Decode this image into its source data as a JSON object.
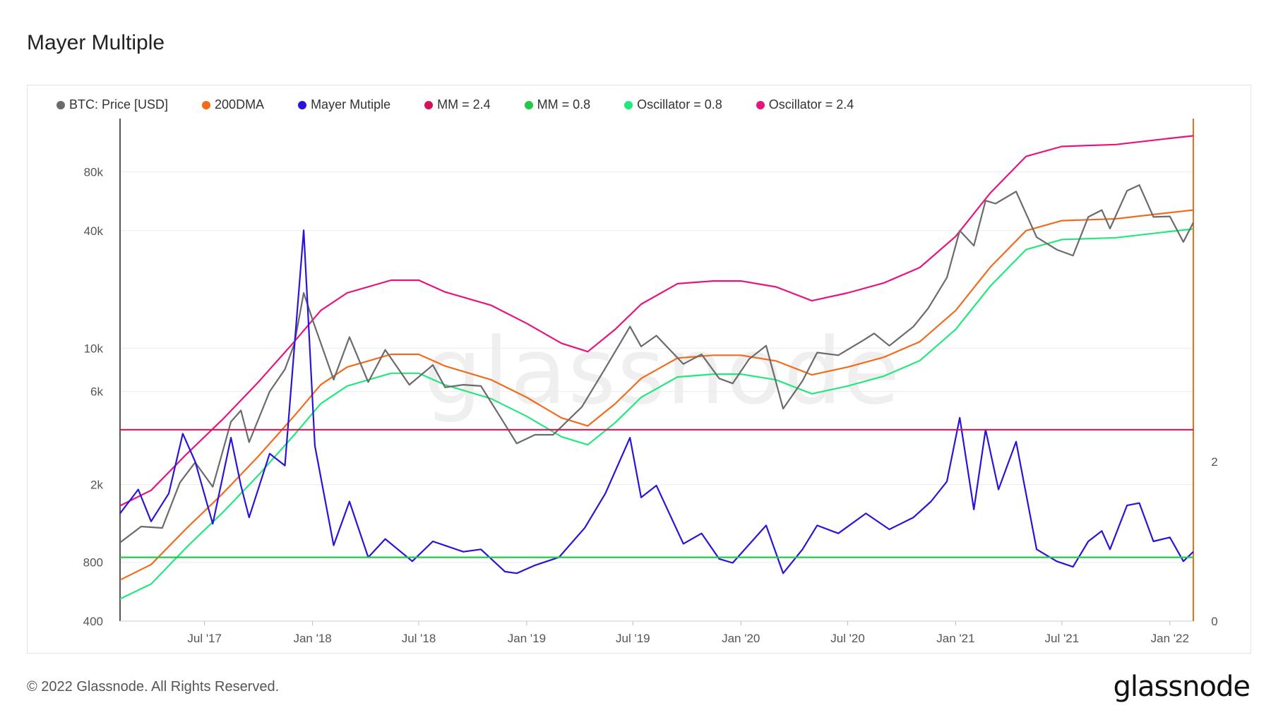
{
  "title": "Mayer Multiple",
  "footer": {
    "copyright": "© 2022 Glassnode. All Rights Reserved.",
    "brand": "glassnode"
  },
  "watermark": "glassnode",
  "chart_data": {
    "type": "line",
    "title": "Mayer Multiple",
    "x_axis": {
      "ticks": [
        "Jul '17",
        "Jan '18",
        "Jul '18",
        "Jan '19",
        "Jul '19",
        "Jan '20",
        "Jul '20",
        "Jan '21",
        "Jul '21",
        "Jan '22"
      ],
      "range": [
        "2017-02-07",
        "2022-02-10"
      ]
    },
    "y_axis_left": {
      "scale": "log",
      "ticks": [
        400,
        800,
        2000,
        6000,
        10000,
        40000,
        80000
      ],
      "tick_labels": [
        "400",
        "800",
        "2k",
        "6k",
        "10k",
        "40k",
        "80k"
      ],
      "range": [
        400,
        150000
      ]
    },
    "y_axis_right": {
      "scale": "linear",
      "ticks": [
        0,
        2
      ],
      "tick_labels": [
        "0",
        "2"
      ],
      "range": [
        0,
        6.3
      ]
    },
    "legend_placement": "top-left",
    "series": [
      {
        "name": "BTC: Price [USD]",
        "color": "#6b6b6b",
        "axis": "left",
        "points": [
          [
            "2017-02-07",
            1010
          ],
          [
            "2017-03-15",
            1220
          ],
          [
            "2017-04-20",
            1200
          ],
          [
            "2017-05-20",
            2050
          ],
          [
            "2017-06-15",
            2600
          ],
          [
            "2017-07-15",
            1950
          ],
          [
            "2017-08-15",
            4200
          ],
          [
            "2017-09-01",
            4800
          ],
          [
            "2017-09-15",
            3300
          ],
          [
            "2017-10-20",
            6000
          ],
          [
            "2017-11-15",
            7800
          ],
          [
            "2017-12-01",
            10500
          ],
          [
            "2017-12-17",
            19200
          ],
          [
            "2018-01-01",
            14000
          ],
          [
            "2018-02-06",
            6900
          ],
          [
            "2018-03-05",
            11400
          ],
          [
            "2018-04-06",
            6700
          ],
          [
            "2018-05-05",
            9800
          ],
          [
            "2018-06-15",
            6500
          ],
          [
            "2018-07-25",
            8200
          ],
          [
            "2018-08-15",
            6300
          ],
          [
            "2018-09-15",
            6500
          ],
          [
            "2018-10-15",
            6400
          ],
          [
            "2018-11-20",
            4300
          ],
          [
            "2018-12-15",
            3250
          ],
          [
            "2019-01-15",
            3600
          ],
          [
            "2019-02-15",
            3600
          ],
          [
            "2019-04-05",
            5000
          ],
          [
            "2019-05-15",
            7900
          ],
          [
            "2019-06-26",
            12900
          ],
          [
            "2019-07-15",
            10200
          ],
          [
            "2019-08-10",
            11600
          ],
          [
            "2019-09-25",
            8300
          ],
          [
            "2019-10-26",
            9300
          ],
          [
            "2019-11-25",
            7000
          ],
          [
            "2019-12-18",
            6600
          ],
          [
            "2020-01-15",
            8800
          ],
          [
            "2020-02-13",
            10300
          ],
          [
            "2020-03-13",
            4900
          ],
          [
            "2020-04-15",
            6800
          ],
          [
            "2020-05-10",
            9500
          ],
          [
            "2020-06-15",
            9200
          ],
          [
            "2020-07-28",
            11000
          ],
          [
            "2020-08-15",
            11900
          ],
          [
            "2020-09-10",
            10300
          ],
          [
            "2020-10-21",
            12900
          ],
          [
            "2020-11-15",
            16000
          ],
          [
            "2020-12-17",
            23000
          ],
          [
            "2021-01-08",
            40000
          ],
          [
            "2021-02-01",
            33500
          ],
          [
            "2021-02-21",
            57000
          ],
          [
            "2021-03-10",
            55000
          ],
          [
            "2021-04-14",
            63500
          ],
          [
            "2021-05-19",
            37000
          ],
          [
            "2021-06-22",
            32000
          ],
          [
            "2021-07-20",
            29800
          ],
          [
            "2021-08-15",
            47000
          ],
          [
            "2021-09-07",
            51000
          ],
          [
            "2021-09-21",
            41000
          ],
          [
            "2021-10-20",
            64000
          ],
          [
            "2021-11-10",
            68500
          ],
          [
            "2021-12-04",
            47000
          ],
          [
            "2022-01-01",
            47300
          ],
          [
            "2022-01-24",
            35000
          ],
          [
            "2022-02-10",
            44000
          ]
        ]
      },
      {
        "name": "200DMA",
        "color": "#f26b1d",
        "axis": "left",
        "points": [
          [
            "2017-02-07",
            650
          ],
          [
            "2017-04-01",
            780
          ],
          [
            "2017-06-01",
            1200
          ],
          [
            "2017-08-01",
            1800
          ],
          [
            "2017-10-01",
            2800
          ],
          [
            "2017-12-01",
            4500
          ],
          [
            "2018-01-15",
            6500
          ],
          [
            "2018-03-01",
            8000
          ],
          [
            "2018-05-15",
            9300
          ],
          [
            "2018-07-01",
            9300
          ],
          [
            "2018-08-15",
            8100
          ],
          [
            "2018-11-01",
            6900
          ],
          [
            "2019-01-01",
            5600
          ],
          [
            "2019-03-01",
            4400
          ],
          [
            "2019-04-15",
            4000
          ],
          [
            "2019-06-01",
            5200
          ],
          [
            "2019-07-15",
            7000
          ],
          [
            "2019-09-15",
            8900
          ],
          [
            "2019-11-15",
            9200
          ],
          [
            "2020-01-01",
            9200
          ],
          [
            "2020-03-01",
            8600
          ],
          [
            "2020-05-01",
            7300
          ],
          [
            "2020-07-01",
            8000
          ],
          [
            "2020-09-01",
            9000
          ],
          [
            "2020-11-01",
            10800
          ],
          [
            "2021-01-01",
            15600
          ],
          [
            "2021-03-01",
            26000
          ],
          [
            "2021-05-01",
            40000
          ],
          [
            "2021-07-01",
            45000
          ],
          [
            "2021-10-01",
            46000
          ],
          [
            "2022-01-01",
            49500
          ],
          [
            "2022-02-10",
            51000
          ]
        ]
      },
      {
        "name": "Mayer Mutiple",
        "color": "#2a14d8",
        "axis": "right",
        "points": [
          [
            "2017-02-07",
            1.35
          ],
          [
            "2017-03-10",
            1.65
          ],
          [
            "2017-04-01",
            1.25
          ],
          [
            "2017-05-01",
            1.6
          ],
          [
            "2017-05-25",
            2.35
          ],
          [
            "2017-06-15",
            2.0
          ],
          [
            "2017-07-15",
            1.22
          ],
          [
            "2017-08-15",
            2.3
          ],
          [
            "2017-09-01",
            1.7
          ],
          [
            "2017-09-15",
            1.3
          ],
          [
            "2017-10-20",
            2.1
          ],
          [
            "2017-11-15",
            1.95
          ],
          [
            "2017-12-17",
            4.9
          ],
          [
            "2018-01-05",
            2.2
          ],
          [
            "2018-02-06",
            0.95
          ],
          [
            "2018-03-05",
            1.5
          ],
          [
            "2018-04-06",
            0.8
          ],
          [
            "2018-05-05",
            1.03
          ],
          [
            "2018-06-20",
            0.75
          ],
          [
            "2018-07-25",
            1.0
          ],
          [
            "2018-09-15",
            0.87
          ],
          [
            "2018-10-15",
            0.9
          ],
          [
            "2018-11-25",
            0.62
          ],
          [
            "2018-12-15",
            0.6
          ],
          [
            "2019-01-15",
            0.7
          ],
          [
            "2019-02-25",
            0.8
          ],
          [
            "2019-04-10",
            1.17
          ],
          [
            "2019-05-15",
            1.6
          ],
          [
            "2019-06-26",
            2.3
          ],
          [
            "2019-07-15",
            1.55
          ],
          [
            "2019-08-10",
            1.7
          ],
          [
            "2019-09-25",
            0.97
          ],
          [
            "2019-10-26",
            1.1
          ],
          [
            "2019-11-25",
            0.78
          ],
          [
            "2019-12-18",
            0.73
          ],
          [
            "2020-02-13",
            1.2
          ],
          [
            "2020-03-13",
            0.6
          ],
          [
            "2020-04-15",
            0.9
          ],
          [
            "2020-05-10",
            1.2
          ],
          [
            "2020-06-15",
            1.1
          ],
          [
            "2020-08-01",
            1.35
          ],
          [
            "2020-09-10",
            1.15
          ],
          [
            "2020-10-21",
            1.3
          ],
          [
            "2020-11-20",
            1.5
          ],
          [
            "2020-12-17",
            1.75
          ],
          [
            "2021-01-08",
            2.55
          ],
          [
            "2021-02-01",
            1.4
          ],
          [
            "2021-02-21",
            2.4
          ],
          [
            "2021-03-15",
            1.65
          ],
          [
            "2021-04-14",
            2.25
          ],
          [
            "2021-05-19",
            0.9
          ],
          [
            "2021-06-22",
            0.75
          ],
          [
            "2021-07-20",
            0.68
          ],
          [
            "2021-08-15",
            1.0
          ],
          [
            "2021-09-07",
            1.13
          ],
          [
            "2021-09-21",
            0.9
          ],
          [
            "2021-10-20",
            1.45
          ],
          [
            "2021-11-10",
            1.48
          ],
          [
            "2021-12-04",
            1.0
          ],
          [
            "2022-01-01",
            1.05
          ],
          [
            "2022-01-24",
            0.75
          ],
          [
            "2022-02-10",
            0.87
          ]
        ]
      },
      {
        "name": "MM = 2.4",
        "color": "#d4145a",
        "axis": "right",
        "points": [
          [
            "2017-02-07",
            2.4
          ],
          [
            "2022-02-10",
            2.4
          ]
        ]
      },
      {
        "name": "MM = 0.8",
        "color": "#22c84a",
        "axis": "right",
        "points": [
          [
            "2017-02-07",
            0.8
          ],
          [
            "2022-02-10",
            0.8
          ]
        ]
      },
      {
        "name": "Oscillator = 0.8",
        "color": "#22e87e",
        "axis": "left",
        "points": [
          [
            "2017-02-07",
            520
          ],
          [
            "2017-04-01",
            620
          ],
          [
            "2017-06-01",
            960
          ],
          [
            "2017-08-01",
            1440
          ],
          [
            "2017-10-01",
            2240
          ],
          [
            "2017-12-01",
            3600
          ],
          [
            "2018-01-15",
            5200
          ],
          [
            "2018-03-01",
            6400
          ],
          [
            "2018-05-15",
            7440
          ],
          [
            "2018-07-01",
            7440
          ],
          [
            "2018-08-15",
            6480
          ],
          [
            "2018-11-01",
            5520
          ],
          [
            "2019-01-01",
            4480
          ],
          [
            "2019-03-01",
            3520
          ],
          [
            "2019-04-15",
            3200
          ],
          [
            "2019-06-01",
            4160
          ],
          [
            "2019-07-15",
            5600
          ],
          [
            "2019-09-15",
            7120
          ],
          [
            "2019-11-15",
            7360
          ],
          [
            "2020-01-01",
            7360
          ],
          [
            "2020-03-01",
            6880
          ],
          [
            "2020-05-01",
            5840
          ],
          [
            "2020-07-01",
            6400
          ],
          [
            "2020-09-01",
            7200
          ],
          [
            "2020-11-01",
            8640
          ],
          [
            "2021-01-01",
            12480
          ],
          [
            "2021-03-01",
            20800
          ],
          [
            "2021-05-01",
            32000
          ],
          [
            "2021-07-01",
            36000
          ],
          [
            "2021-10-01",
            36800
          ],
          [
            "2022-01-01",
            39600
          ],
          [
            "2022-02-10",
            40800
          ]
        ]
      },
      {
        "name": "Oscillator = 2.4",
        "color": "#e8137e",
        "axis": "left",
        "points": [
          [
            "2017-02-07",
            1560
          ],
          [
            "2017-04-01",
            1870
          ],
          [
            "2017-06-01",
            2880
          ],
          [
            "2017-08-01",
            4320
          ],
          [
            "2017-10-01",
            6720
          ],
          [
            "2017-12-01",
            10800
          ],
          [
            "2018-01-15",
            15600
          ],
          [
            "2018-03-01",
            19200
          ],
          [
            "2018-05-15",
            22300
          ],
          [
            "2018-07-01",
            22300
          ],
          [
            "2018-08-15",
            19400
          ],
          [
            "2018-11-01",
            16600
          ],
          [
            "2019-01-01",
            13400
          ],
          [
            "2019-03-01",
            10600
          ],
          [
            "2019-04-15",
            9600
          ],
          [
            "2019-06-01",
            12500
          ],
          [
            "2019-07-15",
            16800
          ],
          [
            "2019-09-15",
            21400
          ],
          [
            "2019-11-15",
            22100
          ],
          [
            "2020-01-01",
            22100
          ],
          [
            "2020-03-01",
            20600
          ],
          [
            "2020-05-01",
            17500
          ],
          [
            "2020-07-01",
            19200
          ],
          [
            "2020-09-01",
            21600
          ],
          [
            "2020-11-01",
            25900
          ],
          [
            "2021-01-01",
            37400
          ],
          [
            "2021-03-01",
            62400
          ],
          [
            "2021-05-01",
            96000
          ],
          [
            "2021-07-01",
            108000
          ],
          [
            "2021-10-01",
            110400
          ],
          [
            "2022-01-01",
            118800
          ],
          [
            "2022-02-10",
            122400
          ]
        ]
      }
    ]
  }
}
